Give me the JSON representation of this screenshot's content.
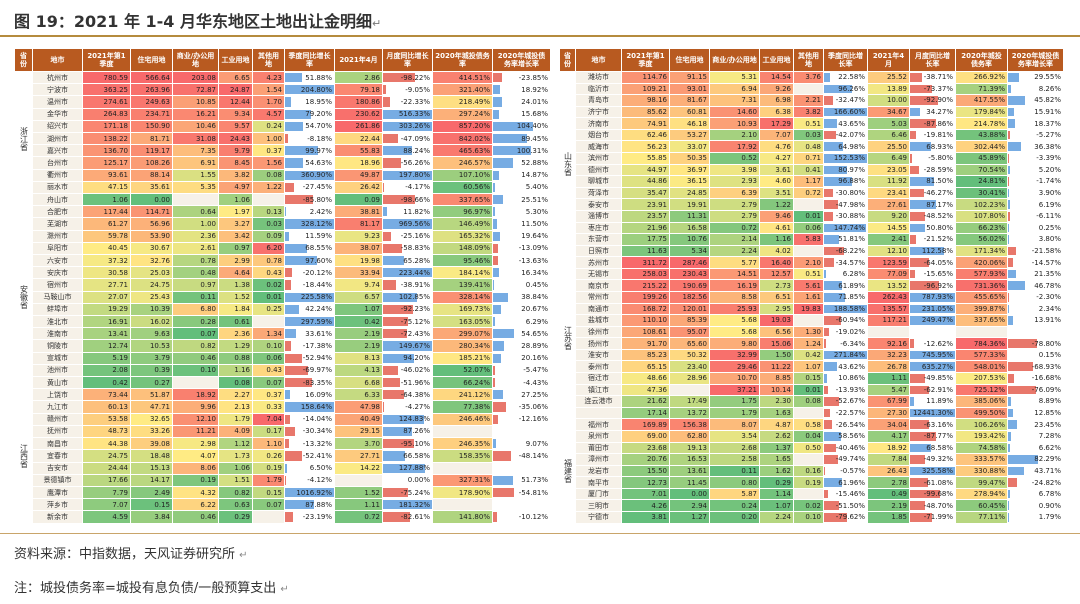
{
  "title": "图 19：2021 年 1-4 月华东地区土地出让金明细",
  "para_mark": "↵",
  "headers": [
    "省份",
    "地市",
    "2021年第1季度",
    "住宅用地",
    "商业/办公用地",
    "工业用地",
    "其他用地",
    "季度同比增长率",
    "2021年4月",
    "月度同比增长率",
    "2020年城投债务率",
    "2020年城投债务率增长率"
  ],
  "left": [
    {
      "prov": "浙江省",
      "rows": [
        [
          "杭州市",
          "780.59",
          "566.64",
          "203.08",
          "6.65",
          "4.23",
          "51.88%",
          "2.86",
          "-98.22%",
          "414.51%",
          "-23.85%"
        ],
        [
          "宁波市",
          "363.25",
          "263.96",
          "72.87",
          "24.87",
          "1.54",
          "204.80%",
          "79.18",
          "-9.05%",
          "321.40%",
          "18.92%"
        ],
        [
          "温州市",
          "274.61",
          "249.63",
          "10.85",
          "12.44",
          "1.70",
          "18.95%",
          "180.86",
          "-22.33%",
          "218.49%",
          "24.01%"
        ],
        [
          "金华市",
          "264.83",
          "234.71",
          "16.21",
          "9.34",
          "4.57",
          "79.20%",
          "230.62",
          "516.33%",
          "297.24%",
          "15.68%"
        ],
        [
          "绍兴市",
          "171.18",
          "150.90",
          "10.46",
          "9.57",
          "0.24",
          "54.70%",
          "261.86",
          "303.26%",
          "857.20%",
          "104.40%"
        ],
        [
          "湖州市",
          "138.22",
          "81.71",
          "31.08",
          "24.43",
          "1.00",
          "-8.18%",
          "22.44",
          "-47.09%",
          "842.02%",
          "89.45%"
        ],
        [
          "嘉兴市",
          "136.70",
          "119.17",
          "7.35",
          "9.79",
          "0.37",
          "99.97%",
          "55.83",
          "88.24%",
          "465.63%",
          "100.31%"
        ],
        [
          "台州市",
          "125.17",
          "108.26",
          "6.91",
          "8.45",
          "1.56",
          "54.63%",
          "18.96",
          "-56.26%",
          "246.57%",
          "52.88%"
        ],
        [
          "衢州市",
          "93.61",
          "88.14",
          "1.55",
          "3.82",
          "0.08",
          "360.90%",
          "49.87",
          "197.80%",
          "107.10%",
          "14.87%"
        ],
        [
          "丽水市",
          "47.15",
          "35.61",
          "5.35",
          "4.97",
          "1.22",
          "-27.45%",
          "26.42",
          "-4.17%",
          "60.56%",
          "5.40%"
        ],
        [
          "舟山市",
          "1.06",
          "0.00",
          "",
          "1.06",
          "",
          "-85.80%",
          "0.09",
          "-98.66%",
          "337.65%",
          "25.51%"
        ]
      ]
    },
    {
      "prov": "安徽省",
      "rows": [
        [
          "合肥市",
          "117.44",
          "114.71",
          "0.64",
          "1.97",
          "0.13",
          "2.42%",
          "38.81",
          "11.82%",
          "96.97%",
          "5.30%"
        ],
        [
          "芜湖市",
          "61.27",
          "56.96",
          "1.00",
          "3.27",
          "0.03",
          "328.12%",
          "81.17",
          "969.56%",
          "146.49%",
          "11.50%"
        ],
        [
          "滁州市",
          "59.78",
          "53.90",
          "2.36",
          "3.42",
          "0.09",
          "11.59%",
          "9.23",
          "-25.16%",
          "165.32%",
          "19.64%"
        ],
        [
          "阜阳市",
          "40.45",
          "30.67",
          "2.61",
          "0.97",
          "6.20",
          "68.55%",
          "38.07",
          "-58.83%",
          "148.09%",
          "-13.09%"
        ],
        [
          "六安市",
          "37.32",
          "32.76",
          "0.78",
          "2.99",
          "0.78",
          "97.60%",
          "19.98",
          "65.28%",
          "95.46%",
          "-13.63%"
        ],
        [
          "安庆市",
          "30.58",
          "25.03",
          "0.48",
          "4.64",
          "0.43",
          "-20.12%",
          "33.94",
          "223.44%",
          "184.14%",
          "16.34%"
        ],
        [
          "宿州市",
          "27.71",
          "24.75",
          "0.97",
          "1.38",
          "0.02",
          "-18.44%",
          "9.74",
          "-38.91%",
          "139.41%",
          "0.45%"
        ],
        [
          "马鞍山市",
          "27.07",
          "25.43",
          "0.11",
          "1.52",
          "0.01",
          "225.58%",
          "6.57",
          "102.85%",
          "328.14%",
          "38.84%"
        ],
        [
          "蚌埠市",
          "19.29",
          "10.39",
          "6.80",
          "1.84",
          "0.25",
          "42.24%",
          "1.07",
          "-92.23%",
          "169.73%",
          "20.67%"
        ],
        [
          "淮北市",
          "16.91",
          "16.02",
          "0.28",
          "0.61",
          "",
          "297.59%",
          "0.42",
          "-75.12%",
          "163.05%",
          "6.29%"
        ],
        [
          "淮南市",
          "13.41",
          "9.63",
          "0.07",
          "2.36",
          "1.34",
          "33.61%",
          "2.19",
          "-72.43%",
          "299.07%",
          "54.65%"
        ],
        [
          "铜陵市",
          "12.74",
          "10.53",
          "0.82",
          "1.29",
          "0.10",
          "-17.38%",
          "2.19",
          "149.67%",
          "280.34%",
          "28.89%"
        ],
        [
          "宣城市",
          "5.19",
          "3.79",
          "0.46",
          "0.88",
          "0.06",
          "-52.94%",
          "8.13",
          "94.20%",
          "185.21%",
          "20.16%"
        ],
        [
          "池州市",
          "2.08",
          "0.39",
          "0.10",
          "1.16",
          "0.43",
          "-69.97%",
          "4.13",
          "-46.02%",
          "52.07%",
          "-5.47%"
        ],
        [
          "黄山市",
          "0.42",
          "0.27",
          "",
          "0.08",
          "0.07",
          "-83.35%",
          "6.68",
          "-51.96%",
          "66.24%",
          "-4.43%"
        ]
      ]
    },
    {
      "prov": "江西省",
      "rows": [
        [
          "上饶市",
          "73.44",
          "51.87",
          "18.92",
          "2.27",
          "0.37",
          "16.09%",
          "6.33",
          "-64.38%",
          "241.12%",
          "27.25%"
        ],
        [
          "九江市",
          "60.13",
          "47.71",
          "9.96",
          "2.13",
          "0.33",
          "158.64%",
          "47.98",
          "-4.27%",
          "77.38%",
          "-35.06%"
        ],
        [
          "赣州市",
          "53.58",
          "32.65",
          "12.10",
          "1.79",
          "7.04",
          "-14.04%",
          "40.49",
          "124.83%",
          "246.46%",
          "-12.16%"
        ],
        [
          "抚州市",
          "48.73",
          "33.26",
          "11.21",
          "4.09",
          "0.17",
          "-30.34%",
          "29.15",
          "87.26%",
          "",
          ""
        ],
        [
          "南昌市",
          "44.38",
          "39.08",
          "2.98",
          "1.12",
          "1.10",
          "-13.32%",
          "3.70",
          "-95.10%",
          "246.35%",
          "9.07%"
        ],
        [
          "宜春市",
          "24.75",
          "18.48",
          "4.07",
          "1.73",
          "0.26",
          "-52.41%",
          "27.71",
          "66.58%",
          "158.35%",
          "-48.14%"
        ],
        [
          "吉安市",
          "24.44",
          "15.13",
          "8.06",
          "1.06",
          "0.19",
          "6.50%",
          "14.22",
          "127.88%",
          "",
          ""
        ],
        [
          "景德镇市",
          "17.66",
          "14.17",
          "0.19",
          "1.51",
          "1.79",
          "-4.12%",
          "",
          "0.00%",
          "327.31%",
          "51.73%"
        ],
        [
          "鹰潭市",
          "7.79",
          "2.49",
          "4.32",
          "0.82",
          "0.15",
          "1016.92%",
          "1.52",
          "-75.24%",
          "178.90%",
          "-54.81%"
        ],
        [
          "萍乡市",
          "7.07",
          "0.15",
          "6.22",
          "0.63",
          "0.07",
          "87.88%",
          "1.11",
          "181.32%",
          "",
          ""
        ],
        [
          "新余市",
          "4.59",
          "3.84",
          "0.46",
          "0.29",
          "",
          "-23.19%",
          "0.72",
          "-82.61%",
          "141.80%",
          "-10.12%"
        ]
      ]
    }
  ],
  "right": [
    {
      "prov": "山东省",
      "rows": [
        [
          "潍坊市",
          "114.76",
          "91.15",
          "5.31",
          "14.54",
          "3.76",
          "22.58%",
          "25.52",
          "-38.71%",
          "266.92%",
          "29.55%"
        ],
        [
          "临沂市",
          "109.21",
          "93.01",
          "6.94",
          "9.26",
          "",
          "96.26%",
          "13.89",
          "-73.37%",
          "71.39%",
          "8.26%"
        ],
        [
          "青岛市",
          "98.16",
          "81.67",
          "7.31",
          "6.98",
          "2.21",
          "-32.47%",
          "10.00",
          "-92.90%",
          "417.55%",
          "45.82%"
        ],
        [
          "济宁市",
          "85.62",
          "60.81",
          "14.60",
          "6.38",
          "3.82",
          "166.60%",
          "34.67",
          "34.27%",
          "179.84%",
          "15.91%"
        ],
        [
          "济南市",
          "74.91",
          "46.18",
          "10.93",
          "17.29",
          "0.51",
          "43.65%",
          "5.03",
          "-87.86%",
          "214.78%",
          "18.37%"
        ],
        [
          "烟台市",
          "62.46",
          "53.27",
          "2.10",
          "7.07",
          "0.03",
          "-42.07%",
          "6.46",
          "-19.81%",
          "43.88%",
          "-5.27%"
        ],
        [
          "威海市",
          "56.23",
          "33.07",
          "17.92",
          "4.76",
          "0.48",
          "64.98%",
          "25.50",
          "68.93%",
          "302.44%",
          "36.38%"
        ],
        [
          "滨州市",
          "55.85",
          "50.35",
          "0.52",
          "4.27",
          "0.71",
          "152.53%",
          "6.49",
          "-5.80%",
          "45.89%",
          "-3.39%"
        ],
        [
          "德州市",
          "44.97",
          "36.97",
          "3.98",
          "3.61",
          "0.41",
          "80.97%",
          "23.05",
          "-28.59%",
          "70.54%",
          "5.20%"
        ],
        [
          "聊城市",
          "44.86",
          "36.15",
          "2.93",
          "4.60",
          "1.17",
          "96.88%",
          "11.92",
          "81.50%",
          "24.81%",
          "-1.74%"
        ],
        [
          "菏泽市",
          "35.47",
          "24.85",
          "6.39",
          "3.51",
          "0.72",
          "-30.80%",
          "23.41",
          "-46.27%",
          "30.41%",
          "3.90%"
        ],
        [
          "泰安市",
          "23.91",
          "19.91",
          "2.79",
          "1.22",
          "",
          "-47.98%",
          "27.61",
          "87.17%",
          "102.23%",
          "6.19%"
        ],
        [
          "淄博市",
          "23.57",
          "11.31",
          "2.79",
          "9.46",
          "0.01",
          "-30.88%",
          "9.20",
          "-48.52%",
          "107.80%",
          "-6.11%"
        ],
        [
          "枣庄市",
          "21.96",
          "16.58",
          "0.72",
          "4.61",
          "0.06",
          "147.74%",
          "14.55",
          "50.80%",
          "66.23%",
          "0.25%"
        ],
        [
          "东营市",
          "17.75",
          "10.76",
          "2.14",
          "1.16",
          "5.83",
          "51.81%",
          "2.41",
          "-21.52%",
          "56.02%",
          "3.80%"
        ],
        [
          "日照市",
          "11.63",
          "5.34",
          "2.24",
          "4.02",
          "",
          "-68.22%",
          "12.10",
          "112.58%",
          "171.34%",
          "-21.58%"
        ]
      ]
    },
    {
      "prov": "江苏省",
      "rows": [
        [
          "苏州市",
          "311.72",
          "287.46",
          "5.77",
          "16.40",
          "2.10",
          "-34.57%",
          "123.59",
          "-64.05%",
          "420.06%",
          "-14.57%"
        ],
        [
          "无锡市",
          "258.03",
          "230.43",
          "14.51",
          "12.57",
          "0.51",
          "6.28%",
          "77.09",
          "-15.65%",
          "577.93%",
          "21.35%"
        ],
        [
          "南京市",
          "215.22",
          "190.69",
          "16.19",
          "2.73",
          "5.61",
          "61.89%",
          "13.52",
          "-96.92%",
          "731.36%",
          "46.78%"
        ],
        [
          "常州市",
          "199.26",
          "182.56",
          "8.58",
          "6.51",
          "1.61",
          "71.85%",
          "262.43",
          "787.93%",
          "455.65%",
          "-2.30%"
        ],
        [
          "南通市",
          "168.72",
          "120.01",
          "25.93",
          "2.95",
          "19.83",
          "188.58%",
          "135.57",
          "231.05%",
          "399.87%",
          "2.34%"
        ],
        [
          "盐城市",
          "110.10",
          "85.39",
          "5.68",
          "19.03",
          "",
          "-60.94%",
          "117.21",
          "249.47%",
          "337.65%",
          "13.91%"
        ],
        [
          "徐州市",
          "108.61",
          "95.07",
          "5.68",
          "6.56",
          "1.30",
          "-19.02%",
          "",
          "",
          "",
          ""
        ],
        [
          "扬州市",
          "91.70",
          "65.60",
          "9.80",
          "15.06",
          "1.24",
          "-6.34%",
          "92.16",
          "-12.62%",
          "784.36%",
          "-78.80%"
        ],
        [
          "淮安市",
          "85.23",
          "50.32",
          "32.99",
          "1.50",
          "0.42",
          "271.84%",
          "32.23",
          "745.95%",
          "577.33%",
          "0.15%"
        ],
        [
          "泰州市",
          "65.15",
          "23.40",
          "29.46",
          "11.22",
          "1.07",
          "43.62%",
          "26.78",
          "635.27%",
          "548.01%",
          "-68.93%"
        ],
        [
          "宿迁市",
          "48.66",
          "28.96",
          "10.70",
          "8.85",
          "0.15",
          "10.86%",
          "1.11",
          "-49.85%",
          "207.53%",
          "-16.68%"
        ],
        [
          "镇江市",
          "47.36",
          "",
          "37.21",
          "10.14",
          "0.01",
          "-13.93%",
          "5.47",
          "-62.91%",
          "725.12%",
          "-76.09%"
        ],
        [
          "连云港市",
          "21.62",
          "17.49",
          "1.75",
          "2.30",
          "0.08",
          "-52.67%",
          "67.99",
          "11.89%",
          "385.06%",
          "8.89%"
        ],
        [
          "",
          "17.14",
          "13.72",
          "1.79",
          "1.63",
          "",
          "-22.57%",
          "27.30",
          "12441.30%",
          "499.50%",
          "12.85%"
        ]
      ]
    },
    {
      "prov": "福建省",
      "rows": [
        [
          "福州市",
          "169.89",
          "156.38",
          "8.07",
          "4.87",
          "0.58",
          "-26.54%",
          "34.04",
          "-63.16%",
          "106.26%",
          "23.45%"
        ],
        [
          "泉州市",
          "69.00",
          "62.80",
          "3.54",
          "2.62",
          "0.04",
          "58.56%",
          "4.17",
          "-87.77%",
          "193.42%",
          "7.28%"
        ],
        [
          "莆田市",
          "23.68",
          "19.13",
          "2.68",
          "1.37",
          "0.50",
          "-40.46%",
          "18.92",
          "68.58%",
          "74.58%",
          "6.62%"
        ],
        [
          "漳州市",
          "20.76",
          "16.53",
          "2.58",
          "1.65",
          "",
          "-49.74%",
          "7.84",
          "-49.32%",
          "333.57%",
          "82.29%"
        ],
        [
          "龙岩市",
          "15.50",
          "13.61",
          "0.11",
          "1.62",
          "0.16",
          "-0.57%",
          "26.43",
          "325.58%",
          "330.88%",
          "43.71%"
        ],
        [
          "南平市",
          "12.73",
          "11.45",
          "0.80",
          "0.29",
          "0.19",
          "61.96%",
          "2.78",
          "-61.08%",
          "99.47%",
          "-24.82%"
        ],
        [
          "厦门市",
          "7.01",
          "0.00",
          "5.87",
          "1.14",
          "",
          "-15.46%",
          "0.49",
          "-99.68%",
          "278.94%",
          "6.78%"
        ],
        [
          "三明市",
          "4.26",
          "2.94",
          "0.24",
          "1.07",
          "0.02",
          "-51.50%",
          "2.19",
          "-48.70%",
          "60.45%",
          "0.90%"
        ],
        [
          "宁德市",
          "3.81",
          "1.27",
          "0.20",
          "2.24",
          "0.10",
          "-79.62%",
          "1.85",
          "-71.99%",
          "77.11%",
          "1.79%"
        ]
      ]
    }
  ],
  "source": "资料来源：中指数据，天风证券研究所",
  "note": "注：城投债务率=城投有息负债/一般预算支出"
}
